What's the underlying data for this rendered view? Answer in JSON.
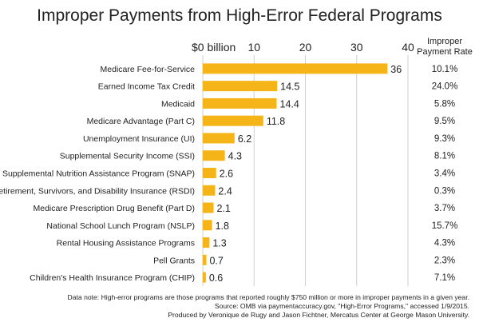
{
  "chart_data": {
    "type": "bar",
    "orientation": "horizontal",
    "title": "Improper Payments from High-Error Federal Programs",
    "xlim": [
      0,
      40
    ],
    "xticks": [
      "$0 billion",
      "10",
      "20",
      "30",
      "40"
    ],
    "xtick_values": [
      0,
      10,
      20,
      30,
      40
    ],
    "bar_color": "#f5b417",
    "grid": true,
    "rate_header": [
      "Improper",
      "Payment Rate"
    ],
    "categories": [
      "Medicare Fee-for-Service",
      "Earned Income Tax Credit",
      "Medicaid",
      "Medicare Advantage (Part C)",
      "Unemployment Insurance (UI)",
      "Supplemental Security Income (SSI)",
      "Supplemental Nutrition Assistance Program (SNAP)",
      "Retirement, Survivors, and Disability Insurance (RSDI)",
      "Medicare Prescription Drug Benefit (Part D)",
      "National School Lunch Program (NSLP)",
      "Rental Housing Assistance Programs",
      "Pell Grants",
      "Children's Health Insurance Program (CHIP)"
    ],
    "values": [
      36,
      14.5,
      14.4,
      11.8,
      6.2,
      4.3,
      2.6,
      2.4,
      2.1,
      1.8,
      1.3,
      0.7,
      0.6
    ],
    "value_labels": [
      "36",
      "14.5",
      "14.4",
      "11.8",
      "6.2",
      "4.3",
      "2.6",
      "2.4",
      "2.1",
      "1.8",
      "1.3",
      "0.7",
      "0.6"
    ],
    "rates": [
      "10.1%",
      "24.0%",
      "5.8%",
      "9.5%",
      "9.3%",
      "8.1%",
      "3.4%",
      "0.3%",
      "3.7%",
      "15.7%",
      "4.3%",
      "2.3%",
      "7.1%"
    ]
  },
  "notes": [
    "Data note: High-error programs are those programs that reported roughly $750 million or more in improper payments in a given year.",
    "Source: OMB via paymentaccuracy.gov, \"High-Error Programs,\" accessed 1/9/2015.",
    "Produced by Veronique de Rugy and Jason Fichtner, Mercatus Center at George Mason University."
  ]
}
